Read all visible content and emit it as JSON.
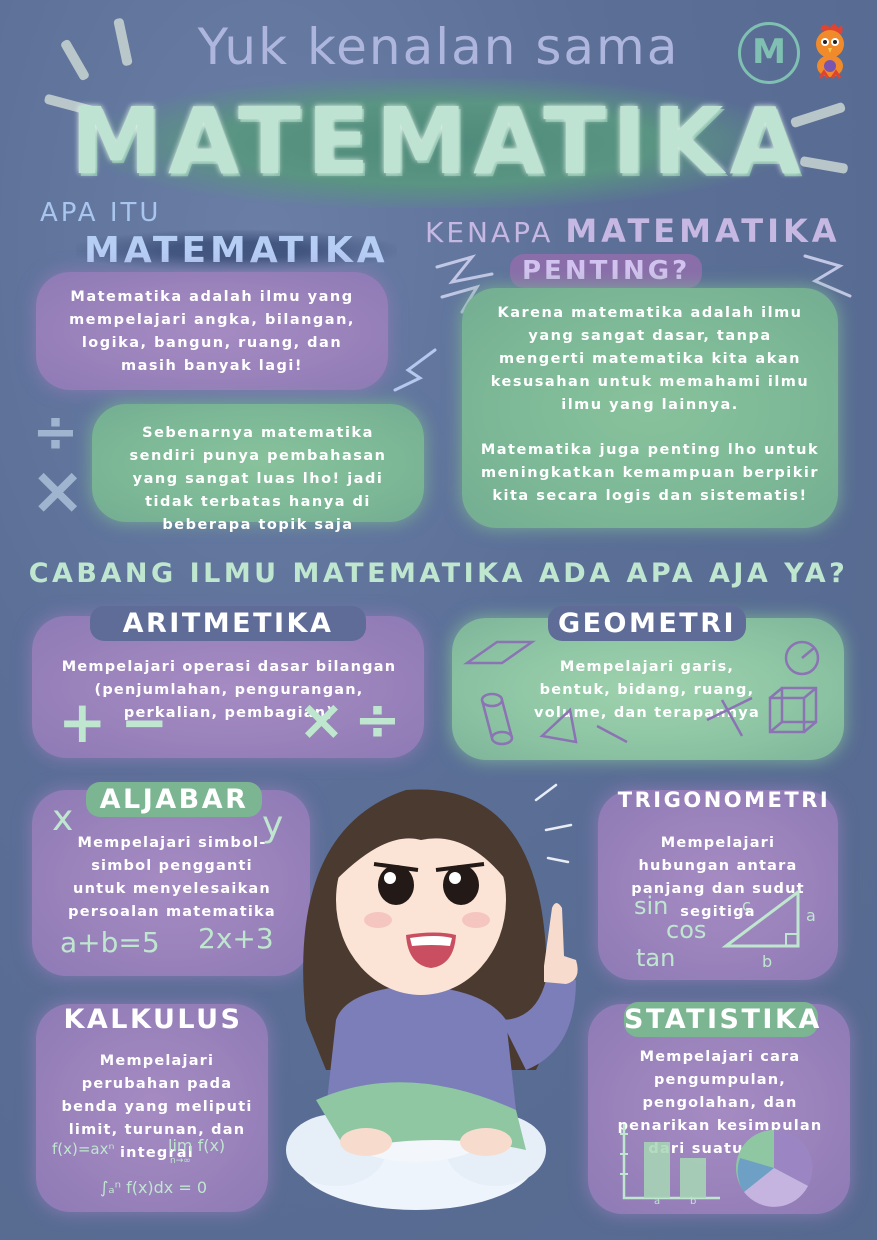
{
  "header": {
    "title_small": "Yuk kenalan sama",
    "title_big": "MATEMATIKA",
    "logo_letter": "M",
    "logo_icon": "m-circle-logo-icon",
    "mascot_icon": "rooster-mascot-icon"
  },
  "apa_itu": {
    "label_small": "APA ITU",
    "label_big": "MATEMATIKA",
    "text1": "Matematika adalah ilmu yang mempelajari angka, bilangan, logika, bangun, ruang, dan masih banyak lagi!",
    "text2": "Sebenarnya matematika sendiri punya pembahasan yang sangat luas lho! jadi tidak terbatas hanya di beberapa topik saja"
  },
  "kenapa": {
    "label_small": "KENAPA",
    "label_mid": "MATEMATIKA",
    "label_big": "PENTING?",
    "text1": "Karena matematika adalah ilmu yang sangat dasar, tanpa mengerti matematika kita akan kesusahan untuk memahami ilmu ilmu yang lainnya.",
    "text2": "Matematika juga penting lho untuk meningkatkan kemampuan berpikir kita secara logis dan sistematis!"
  },
  "cabang": {
    "title": "CABANG ILMU MATEMATIKA ADA APA AJA YA?",
    "aritmetika": {
      "title": "ARITMETIKA",
      "text": "Mempelajari operasi dasar bilangan (penjumlahan, pengurangan, perkalian, pembagian)"
    },
    "geometri": {
      "title": "GEOMETRI",
      "text": "Mempelajari garis, bentuk, bidang, ruang, volume, dan terapannya"
    },
    "aljabar": {
      "title": "ALJABAR",
      "text": "Mempelajari simbol-simbol pengganti untuk menyelesaikan persoalan matematika",
      "var_x": "x",
      "var_y": "y",
      "eq1": "a+b=5",
      "eq2": "2x+3"
    },
    "trigonometri": {
      "title": "TRIGONOMETRI",
      "text": "Mempelajari hubungan antara panjang dan sudut segitiga",
      "sin": "sin",
      "cos": "cos",
      "tan": "tan",
      "side_a": "a",
      "side_b": "b",
      "side_c": "c"
    },
    "kalkulus": {
      "title": "KALKULUS",
      "text": "Mempelajari perubahan pada benda yang meliputi limit, turunan, dan integral",
      "f1": "f(x)=axⁿ",
      "f2": "lim f(x)",
      "f2_sub": "n→∞",
      "f3": "∫ₐⁿ f(x)dx = 0"
    },
    "statistika": {
      "title": "STATISTIKA",
      "text": "Mempelajari cara pengumpulan, pengolahan, dan penarikan kesimpulan dari suatu data",
      "bar_a": "a",
      "bar_b": "b"
    }
  },
  "colors": {
    "background": "#5a6e96",
    "purple": "#9a82bb",
    "green": "#7db997",
    "mint_text": "#bfe6cf"
  }
}
